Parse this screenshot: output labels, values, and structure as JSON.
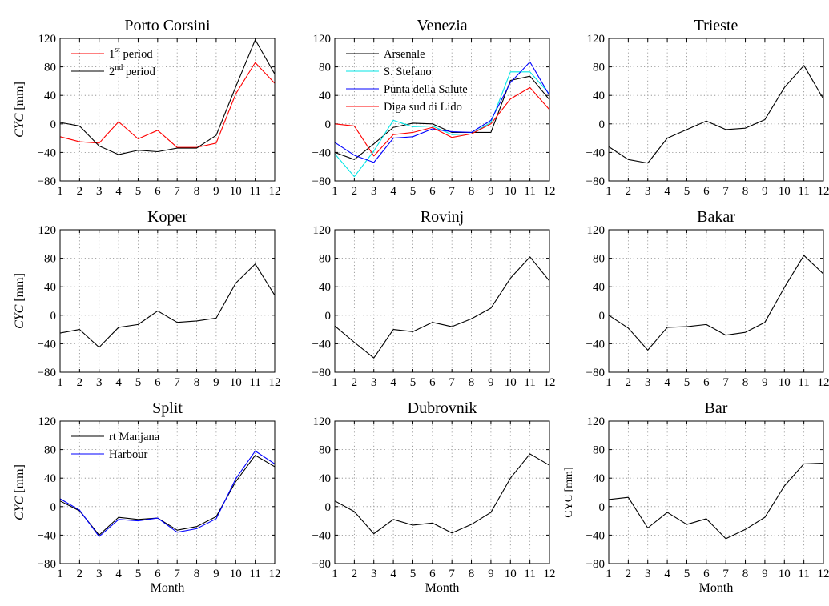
{
  "chart_data": [
    {
      "type": "line",
      "title": "Porto Corsini",
      "ylabel_italic": "CYC",
      "ylabel_unit": "[mm]",
      "xlabel": "",
      "x": [
        1,
        2,
        3,
        4,
        5,
        6,
        7,
        8,
        9,
        10,
        11,
        12
      ],
      "xlim": [
        1,
        12
      ],
      "ylim": [
        -80,
        120
      ],
      "xticks": [
        1,
        2,
        3,
        4,
        5,
        6,
        7,
        8,
        9,
        10,
        11,
        12
      ],
      "yticks": [
        -80,
        -40,
        0,
        40,
        80,
        120
      ],
      "grid": true,
      "legend": "top-left",
      "series": [
        {
          "name": "1",
          "name_sup": "st",
          "name_rest": " period",
          "color": "#ff0000",
          "values": [
            -18,
            -25,
            -27,
            3,
            -21,
            -9,
            -33,
            -33,
            -27,
            42,
            86,
            57
          ]
        },
        {
          "name": "2",
          "name_sup": "nd",
          "name_rest": " period",
          "color": "#000000",
          "values": [
            2,
            -3,
            -31,
            -43,
            -37,
            -39,
            -34,
            -34,
            -16,
            52,
            118,
            70
          ]
        }
      ]
    },
    {
      "type": "line",
      "title": "Venezia",
      "ylabel_italic": "",
      "ylabel_unit": "",
      "xlabel": "",
      "x": [
        1,
        2,
        3,
        4,
        5,
        6,
        7,
        8,
        9,
        10,
        11,
        12
      ],
      "xlim": [
        1,
        12
      ],
      "ylim": [
        -80,
        120
      ],
      "xticks": [
        1,
        2,
        3,
        4,
        5,
        6,
        7,
        8,
        9,
        10,
        11,
        12
      ],
      "yticks": [
        -80,
        -40,
        0,
        40,
        80,
        120
      ],
      "grid": true,
      "legend": "top-left",
      "series": [
        {
          "name": "Arsenale",
          "color": "#000000",
          "values": [
            -40,
            -50,
            -28,
            -5,
            1,
            0,
            -12,
            -12,
            -12,
            61,
            67,
            34
          ]
        },
        {
          "name": "S. Stefano",
          "color": "#00e5e5",
          "values": [
            -42,
            -74,
            -38,
            5,
            -4,
            -3,
            -15,
            -14,
            2,
            73,
            73,
            42
          ]
        },
        {
          "name": "Punta della Salute",
          "color": "#0000ff",
          "values": [
            -26,
            -44,
            -54,
            -20,
            -18,
            -7,
            -11,
            -12,
            5,
            58,
            87,
            40
          ]
        },
        {
          "name": "Diga sud di Lido",
          "color": "#ff0000",
          "values": [
            0,
            -3,
            -45,
            -15,
            -12,
            -5,
            -19,
            -14,
            0,
            35,
            51,
            20
          ]
        }
      ]
    },
    {
      "type": "line",
      "title": "Trieste",
      "ylabel_italic": "",
      "ylabel_unit": "",
      "xlabel": "",
      "x": [
        1,
        2,
        3,
        4,
        5,
        6,
        7,
        8,
        9,
        10,
        11,
        12
      ],
      "xlim": [
        1,
        12
      ],
      "ylim": [
        -80,
        120
      ],
      "xticks": [
        1,
        2,
        3,
        4,
        5,
        6,
        7,
        8,
        9,
        10,
        11,
        12
      ],
      "yticks": [
        -80,
        -40,
        0,
        40,
        80,
        120
      ],
      "grid": true,
      "legend": "none",
      "series": [
        {
          "color": "#000000",
          "values": [
            -32,
            -50,
            -55,
            -20,
            -8,
            4,
            -8,
            -6,
            6,
            51,
            82,
            35
          ]
        }
      ]
    },
    {
      "type": "line",
      "title": "Koper",
      "ylabel_italic": "CYC",
      "ylabel_unit": "[mm]",
      "xlabel": "",
      "x": [
        1,
        2,
        3,
        4,
        5,
        6,
        7,
        8,
        9,
        10,
        11,
        12
      ],
      "xlim": [
        1,
        12
      ],
      "ylim": [
        -80,
        120
      ],
      "xticks": [
        1,
        2,
        3,
        4,
        5,
        6,
        7,
        8,
        9,
        10,
        11,
        12
      ],
      "yticks": [
        -80,
        -40,
        0,
        40,
        80,
        120
      ],
      "grid": true,
      "legend": "none",
      "series": [
        {
          "color": "#000000",
          "values": [
            -25,
            -20,
            -45,
            -17,
            -13,
            6,
            -10,
            -8,
            -4,
            45,
            72,
            28
          ]
        }
      ]
    },
    {
      "type": "line",
      "title": "Rovinj",
      "ylabel_italic": "",
      "ylabel_unit": "",
      "xlabel": "",
      "x": [
        1,
        2,
        3,
        4,
        5,
        6,
        7,
        8,
        9,
        10,
        11,
        12
      ],
      "xlim": [
        1,
        12
      ],
      "ylim": [
        -80,
        120
      ],
      "xticks": [
        1,
        2,
        3,
        4,
        5,
        6,
        7,
        8,
        9,
        10,
        11,
        12
      ],
      "yticks": [
        -80,
        -40,
        0,
        40,
        80,
        120
      ],
      "grid": true,
      "legend": "none",
      "series": [
        {
          "color": "#000000",
          "values": [
            -15,
            -38,
            -60,
            -20,
            -23,
            -10,
            -16,
            -5,
            10,
            52,
            82,
            48
          ]
        }
      ]
    },
    {
      "type": "line",
      "title": "Bakar",
      "ylabel_italic": "",
      "ylabel_unit": "",
      "xlabel": "",
      "x": [
        1,
        2,
        3,
        4,
        5,
        6,
        7,
        8,
        9,
        10,
        11,
        12
      ],
      "xlim": [
        1,
        12
      ],
      "ylim": [
        -80,
        120
      ],
      "xticks": [
        1,
        2,
        3,
        4,
        5,
        6,
        7,
        8,
        9,
        10,
        11,
        12
      ],
      "yticks": [
        -80,
        -40,
        0,
        40,
        80,
        120
      ],
      "grid": true,
      "legend": "none",
      "series": [
        {
          "color": "#000000",
          "values": [
            0,
            -18,
            -49,
            -17,
            -16,
            -13,
            -28,
            -24,
            -10,
            39,
            84,
            58
          ]
        }
      ]
    },
    {
      "type": "line",
      "title": "Split",
      "ylabel_italic": "CYC",
      "ylabel_unit": "[mm]",
      "xlabel": "Month",
      "x": [
        1,
        2,
        3,
        4,
        5,
        6,
        7,
        8,
        9,
        10,
        11,
        12
      ],
      "xlim": [
        1,
        12
      ],
      "ylim": [
        -80,
        120
      ],
      "xticks": [
        1,
        2,
        3,
        4,
        5,
        6,
        7,
        8,
        9,
        10,
        11,
        12
      ],
      "yticks": [
        -80,
        -40,
        0,
        40,
        80,
        120
      ],
      "grid": true,
      "legend": "top-left",
      "series": [
        {
          "name": "rt Manjana",
          "color": "#000000",
          "values": [
            8,
            -6,
            -40,
            -15,
            -18,
            -16,
            -33,
            -28,
            -14,
            35,
            72,
            56
          ]
        },
        {
          "name": "Harbour",
          "color": "#0000ff",
          "values": [
            11,
            -5,
            -42,
            -18,
            -20,
            -16,
            -36,
            -31,
            -17,
            39,
            78,
            60
          ]
        }
      ]
    },
    {
      "type": "line",
      "title": "Dubrovnik",
      "ylabel_italic": "",
      "ylabel_unit": "",
      "xlabel": "Month",
      "x": [
        1,
        2,
        3,
        4,
        5,
        6,
        7,
        8,
        9,
        10,
        11,
        12
      ],
      "xlim": [
        1,
        12
      ],
      "ylim": [
        -80,
        120
      ],
      "xticks": [
        1,
        2,
        3,
        4,
        5,
        6,
        7,
        8,
        9,
        10,
        11,
        12
      ],
      "yticks": [
        -80,
        -40,
        0,
        40,
        80,
        120
      ],
      "grid": true,
      "legend": "none",
      "series": [
        {
          "color": "#000000",
          "values": [
            8,
            -7,
            -38,
            -18,
            -26,
            -23,
            -37,
            -25,
            -8,
            40,
            74,
            58
          ]
        }
      ]
    },
    {
      "type": "line",
      "title": "Bar",
      "ylabel_italic": "CYC",
      "ylabel_unit": "[mm]",
      "ylabel_upright": true,
      "xlabel": "Month",
      "x": [
        1,
        2,
        3,
        4,
        5,
        6,
        7,
        8,
        9,
        10,
        11,
        12
      ],
      "xlim": [
        1,
        12
      ],
      "ylim": [
        -80,
        120
      ],
      "xticks": [
        1,
        2,
        3,
        4,
        5,
        6,
        7,
        8,
        9,
        10,
        11,
        12
      ],
      "yticks": [
        -80,
        -40,
        0,
        40,
        80,
        120
      ],
      "grid": true,
      "legend": "none",
      "series": [
        {
          "color": "#000000",
          "values": [
            10,
            13,
            -30,
            -8,
            -25,
            -17,
            -45,
            -32,
            -15,
            29,
            60,
            61
          ]
        }
      ]
    }
  ]
}
